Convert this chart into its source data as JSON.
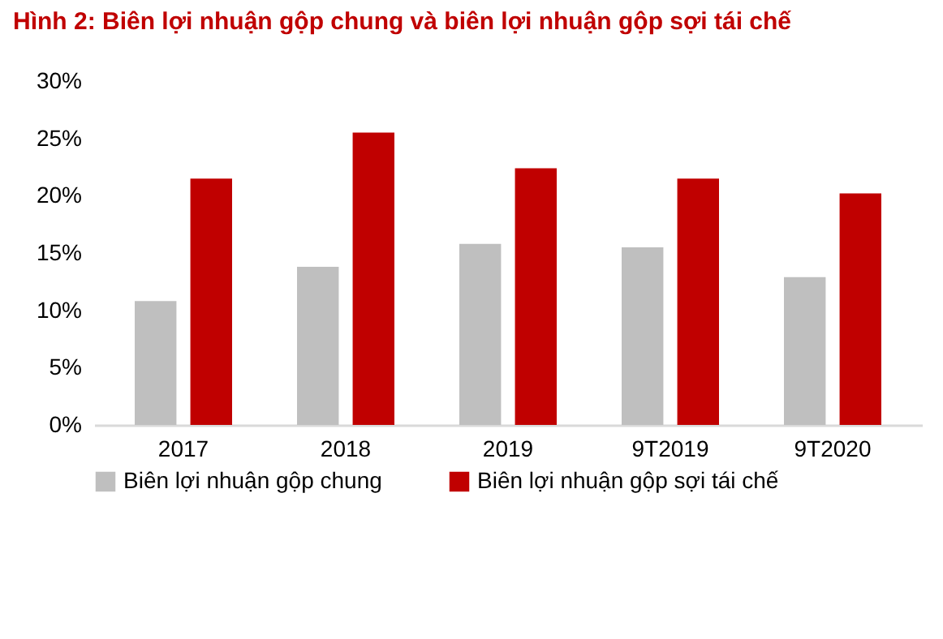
{
  "chart_data": {
    "type": "bar",
    "title": "Hình 2: Biên lợi nhuận gộp chung và biên lợi nhuận gộp sợi tái chế",
    "categories": [
      "2017",
      "2018",
      "2019",
      "9T2019",
      "9T2020"
    ],
    "series": [
      {
        "name": "Biên lợi nhuận gộp chung",
        "color": "#bfbfbf",
        "values": [
          10.8,
          13.8,
          15.8,
          15.5,
          12.9
        ]
      },
      {
        "name": "Biên lợi nhuận gộp sợi tái chế",
        "color": "#c00000",
        "values": [
          21.5,
          25.5,
          22.4,
          21.5,
          20.2
        ]
      }
    ],
    "ylim": [
      0,
      30
    ],
    "yticks": [
      {
        "value": 0,
        "label": "0%"
      },
      {
        "value": 5,
        "label": "5%"
      },
      {
        "value": 10,
        "label": "10%"
      },
      {
        "value": 15,
        "label": "15%"
      },
      {
        "value": 20,
        "label": "20%"
      },
      {
        "value": 25,
        "label": "25%"
      },
      {
        "value": 30,
        "label": "30%"
      }
    ],
    "grid": false,
    "legend": "bottom"
  }
}
